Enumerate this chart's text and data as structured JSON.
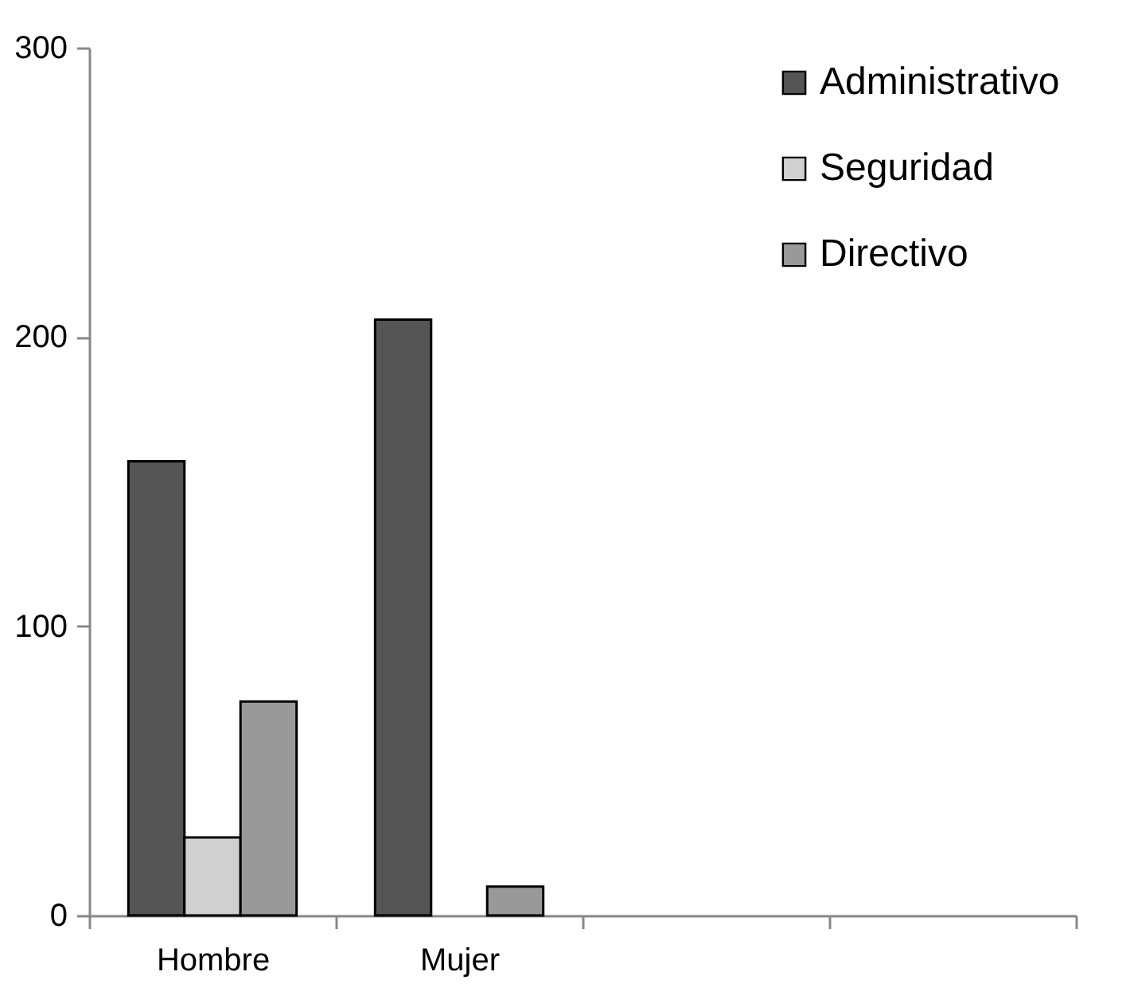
{
  "chart_data": {
    "type": "bar",
    "categories": [
      "Hombre",
      "Mujer",
      null,
      null
    ],
    "series": [
      {
        "name": "Administrativo",
        "color": "#555555",
        "values": [
          157,
          206,
          null,
          null
        ]
      },
      {
        "name": "Seguridad",
        "color": "#d0d0d0",
        "values": [
          27,
          null,
          null,
          null
        ]
      },
      {
        "name": "Directivo",
        "color": "#999999",
        "values": [
          74,
          10,
          null,
          null
        ]
      }
    ],
    "ylim": [
      0,
      300
    ],
    "yticks": [
      0,
      100,
      200,
      300
    ],
    "grid": false,
    "legend": "top right"
  }
}
